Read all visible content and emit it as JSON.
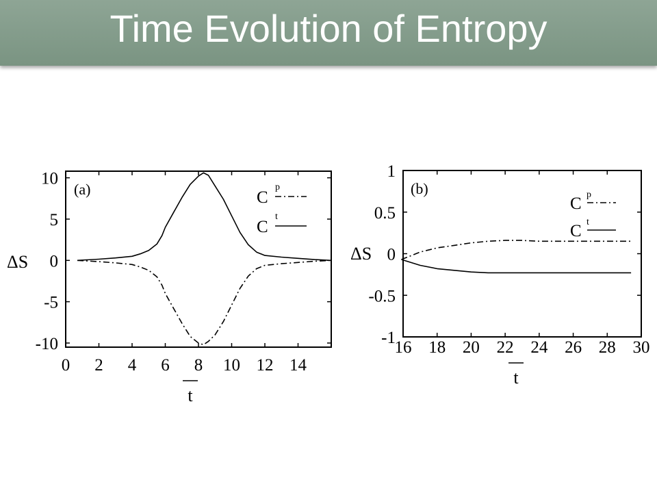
{
  "slide": {
    "title": "Time Evolution of Entropy"
  },
  "chart_data": [
    {
      "type": "line",
      "panel_label": "(a)",
      "xlabel": "t",
      "ylabel": "ΔS",
      "xlim": [
        0,
        16
      ],
      "ylim": [
        -10.5,
        10.8
      ],
      "xticks": [
        0,
        2,
        4,
        6,
        8,
        10,
        12,
        14
      ],
      "yticks": [
        10,
        5,
        0,
        -5,
        -10
      ],
      "xtick_labels": [
        "0",
        "2",
        "4",
        "6",
        "8",
        "10",
        "12",
        "14"
      ],
      "ytick_labels": [
        "10",
        "5",
        "0",
        "-5",
        "-10"
      ],
      "legend_position": "top-right",
      "series": [
        {
          "name": "C",
          "superscript": "p",
          "style": "dash-dot",
          "x": [
            0.7,
            2,
            3,
            4,
            4.5,
            5,
            5.5,
            5.8,
            6,
            6.5,
            7,
            7.5,
            8,
            8.3,
            8.6,
            9,
            9.5,
            10,
            10.5,
            11,
            11.5,
            12,
            13,
            14,
            15,
            16
          ],
          "y": [
            0,
            -0.15,
            -0.3,
            -0.5,
            -0.8,
            -1.2,
            -2,
            -3,
            -4,
            -5.8,
            -7.6,
            -9.2,
            -10,
            -10.2,
            -9.8,
            -9,
            -7.4,
            -5.4,
            -3.4,
            -1.9,
            -1,
            -0.6,
            -0.4,
            -0.25,
            -0.1,
            0
          ]
        },
        {
          "name": "C",
          "superscript": "t",
          "style": "solid",
          "x": [
            0.7,
            2,
            3,
            4,
            4.5,
            5,
            5.5,
            5.8,
            6,
            6.5,
            7,
            7.5,
            8,
            8.3,
            8.6,
            9,
            9.5,
            10,
            10.5,
            11,
            11.5,
            12,
            13,
            14,
            15,
            16
          ],
          "y": [
            0,
            0.15,
            0.3,
            0.5,
            0.8,
            1.2,
            2,
            3,
            4,
            5.8,
            7.6,
            9.2,
            10.2,
            10.6,
            10.3,
            9,
            7.4,
            5.4,
            3.4,
            1.9,
            1,
            0.6,
            0.4,
            0.25,
            0.1,
            0
          ]
        }
      ]
    },
    {
      "type": "line",
      "panel_label": "(b)",
      "xlabel": "t",
      "ylabel": "ΔS",
      "xlim": [
        16,
        30
      ],
      "ylim": [
        -1,
        1
      ],
      "xticks": [
        16,
        18,
        20,
        22,
        24,
        26,
        28,
        30
      ],
      "yticks": [
        1,
        0.5,
        0,
        -0.5,
        -1
      ],
      "xtick_labels": [
        "16",
        "18",
        "20",
        "22",
        "24",
        "26",
        "28",
        "30"
      ],
      "ytick_labels": [
        "1",
        "0.5",
        "0",
        "-0.5",
        "-1"
      ],
      "legend_position": "top-right",
      "series": [
        {
          "name": "C",
          "superscript": "p",
          "style": "dash-dot",
          "x": [
            15.9,
            17,
            18,
            19,
            20,
            21,
            22,
            23,
            24,
            25,
            26,
            27,
            28,
            29,
            29.4
          ],
          "y": [
            -0.07,
            0.02,
            0.07,
            0.1,
            0.13,
            0.15,
            0.16,
            0.16,
            0.15,
            0.15,
            0.15,
            0.15,
            0.15,
            0.15,
            0.15
          ]
        },
        {
          "name": "C",
          "superscript": "t",
          "style": "solid",
          "x": [
            15.9,
            17,
            18,
            19,
            20,
            21,
            22,
            23,
            24,
            25,
            26,
            27,
            28,
            29,
            29.4
          ],
          "y": [
            -0.07,
            -0.14,
            -0.18,
            -0.2,
            -0.22,
            -0.23,
            -0.23,
            -0.23,
            -0.23,
            -0.23,
            -0.23,
            -0.23,
            -0.23,
            -0.23,
            -0.23
          ]
        }
      ]
    }
  ]
}
